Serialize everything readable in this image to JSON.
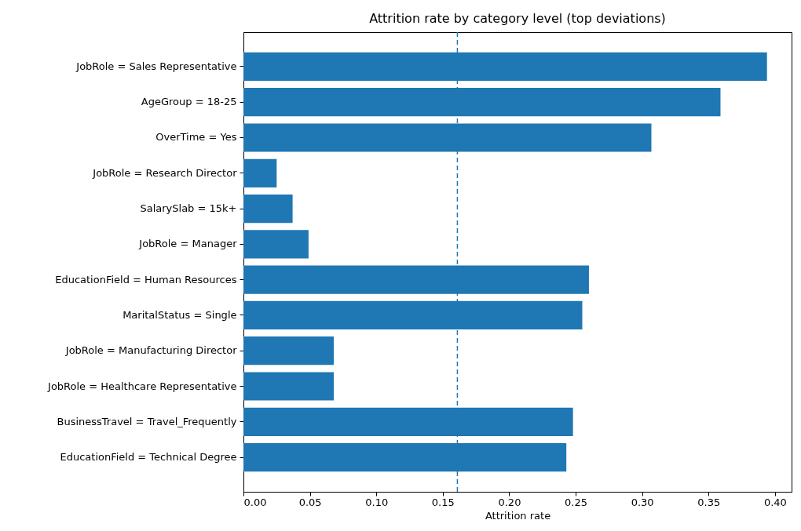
{
  "chart_data": {
    "type": "bar",
    "orientation": "horizontal",
    "title": "Attrition rate by category level (top deviations)",
    "xlabel": "Attrition rate",
    "categories": [
      "JobRole = Sales Representative",
      "AgeGroup = 18-25",
      "OverTime = Yes",
      "JobRole = Research Director",
      "SalarySlab = 15k+",
      "JobRole = Manager",
      "EducationField = Human Resources",
      "MaritalStatus = Single",
      "JobRole = Manufacturing Director",
      "JobRole = Healthcare Representative",
      "BusinessTravel = Travel_Frequently",
      "EducationField = Technical Degree"
    ],
    "values": [
      0.394,
      0.359,
      0.307,
      0.025,
      0.037,
      0.049,
      0.26,
      0.255,
      0.068,
      0.068,
      0.248,
      0.243
    ],
    "color": "#1f77b4",
    "xlim": [
      0,
      0.4125
    ],
    "xticks": [
      {
        "value": 0,
        "label": "0.00"
      },
      {
        "value": 0.05,
        "label": "0.05"
      },
      {
        "value": 0.1,
        "label": "0.10"
      },
      {
        "value": 0.15,
        "label": "0.15"
      },
      {
        "value": 0.2,
        "label": "0.20"
      },
      {
        "value": 0.25,
        "label": "0.25"
      },
      {
        "value": 0.3,
        "label": "0.30"
      },
      {
        "value": 0.35,
        "label": "0.35"
      },
      {
        "value": 0.4,
        "label": "0.40"
      }
    ],
    "ref_lines": [
      {
        "axis": "x",
        "value": 0.161,
        "color": "#1f77b4",
        "line_style": "dashed"
      }
    ],
    "grid": false
  }
}
